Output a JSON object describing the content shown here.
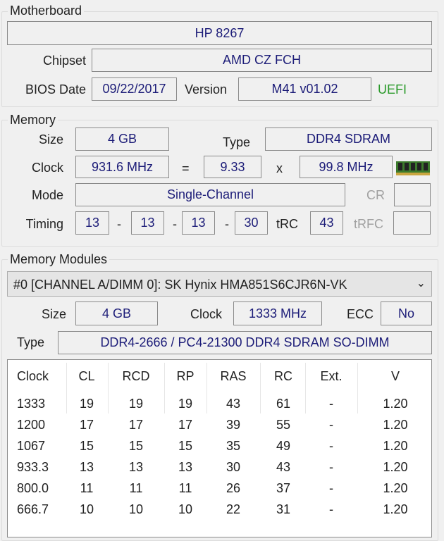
{
  "motherboard": {
    "title": "Motherboard",
    "model": "HP 8267",
    "chipset_label": "Chipset",
    "chipset": "AMD CZ FCH",
    "bios_date_label": "BIOS Date",
    "bios_date": "09/22/2017",
    "version_label": "Version",
    "version": "M41 v01.02",
    "uefi": "UEFI",
    "uefi_color": "#2a9a2a"
  },
  "memory": {
    "title": "Memory",
    "size_label": "Size",
    "size": "4 GB",
    "type_label": "Type",
    "type": "DDR4 SDRAM",
    "clock_label": "Clock",
    "clock": "931.6 MHz",
    "eq": "=",
    "multiplier": "9.33",
    "x": "x",
    "bus": "99.8 MHz",
    "ram_icon": "ram-module-icon",
    "mode_label": "Mode",
    "mode": "Single-Channel",
    "cr_label": "CR",
    "cr": "",
    "timing_label": "Timing",
    "t1": "13",
    "t2": "13",
    "t3": "13",
    "t4": "30",
    "dash": "-",
    "trc_label": "tRC",
    "trc": "43",
    "trfc_label": "tRFC",
    "trfc": ""
  },
  "modules": {
    "title": "Memory Modules",
    "selected": "#0 [CHANNEL A/DIMM 0]: SK Hynix HMA851S6CJR6N-VK",
    "size_label": "Size",
    "size": "4 GB",
    "clock_label": "Clock",
    "clock": "1333 MHz",
    "ecc_label": "ECC",
    "ecc": "No",
    "type_label": "Type",
    "type": "DDR4-2666 / PC4-21300 DDR4 SDRAM SO-DIMM",
    "table": {
      "headers": [
        "Clock",
        "CL",
        "RCD",
        "RP",
        "RAS",
        "RC",
        "Ext.",
        "V"
      ],
      "rows": [
        [
          "1333",
          "19",
          "19",
          "19",
          "43",
          "61",
          "-",
          "1.20"
        ],
        [
          "1200",
          "17",
          "17",
          "17",
          "39",
          "55",
          "-",
          "1.20"
        ],
        [
          "1067",
          "15",
          "15",
          "15",
          "35",
          "49",
          "-",
          "1.20"
        ],
        [
          "933.3",
          "13",
          "13",
          "13",
          "30",
          "43",
          "-",
          "1.20"
        ],
        [
          "800.0",
          "11",
          "11",
          "11",
          "26",
          "37",
          "-",
          "1.20"
        ],
        [
          "666.7",
          "10",
          "10",
          "10",
          "22",
          "31",
          "-",
          "1.20"
        ]
      ]
    }
  }
}
